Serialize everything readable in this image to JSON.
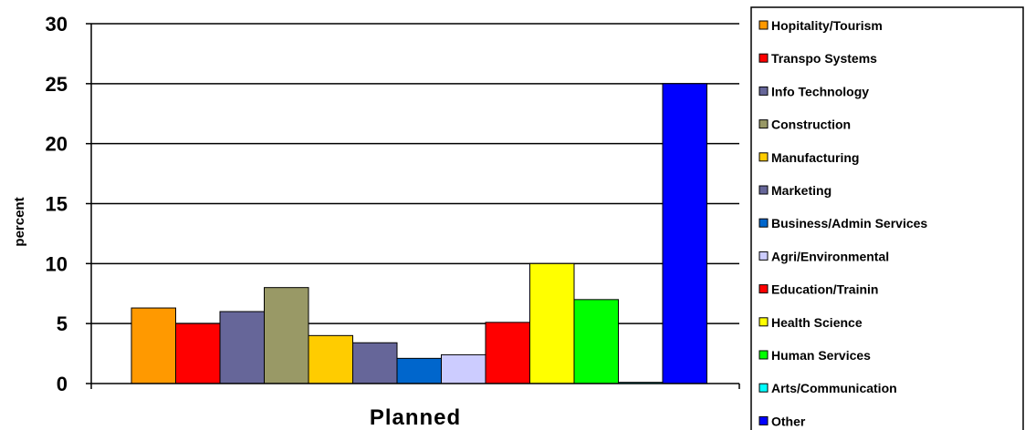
{
  "chart_data": {
    "type": "bar",
    "categories": [
      "Planned"
    ],
    "ylabel": "percent",
    "ylim": [
      0,
      30
    ],
    "yticks": [
      0,
      5,
      10,
      15,
      20,
      25,
      30
    ],
    "grid": true,
    "legend_position": "right",
    "series": [
      {
        "name": "Hopitality/Tourism",
        "values": [
          6.3
        ],
        "color": "#ff9900"
      },
      {
        "name": "Transpo Systems",
        "values": [
          5.0
        ],
        "color": "#ff0000"
      },
      {
        "name": "Info Technology",
        "values": [
          6.0
        ],
        "color": "#666699"
      },
      {
        "name": "Construction",
        "values": [
          8.0
        ],
        "color": "#999966"
      },
      {
        "name": "Manufacturing",
        "values": [
          4.0
        ],
        "color": "#ffcc00"
      },
      {
        "name": "Marketing",
        "values": [
          3.4
        ],
        "color": "#666699"
      },
      {
        "name": "Business/Admin Services",
        "values": [
          2.1
        ],
        "color": "#0066cc"
      },
      {
        "name": "Agri/Environmental",
        "values": [
          2.4
        ],
        "color": "#ccccff"
      },
      {
        "name": "Education/Trainin",
        "values": [
          5.1
        ],
        "color": "#ff0000"
      },
      {
        "name": "Health Science",
        "values": [
          10.0
        ],
        "color": "#ffff00"
      },
      {
        "name": "Human Services",
        "values": [
          7.0
        ],
        "color": "#00ff00"
      },
      {
        "name": "Arts/Communication",
        "values": [
          0.1
        ],
        "color": "#00ffff"
      },
      {
        "name": "Other",
        "values": [
          25.0
        ],
        "color": "#0000ff"
      }
    ]
  }
}
